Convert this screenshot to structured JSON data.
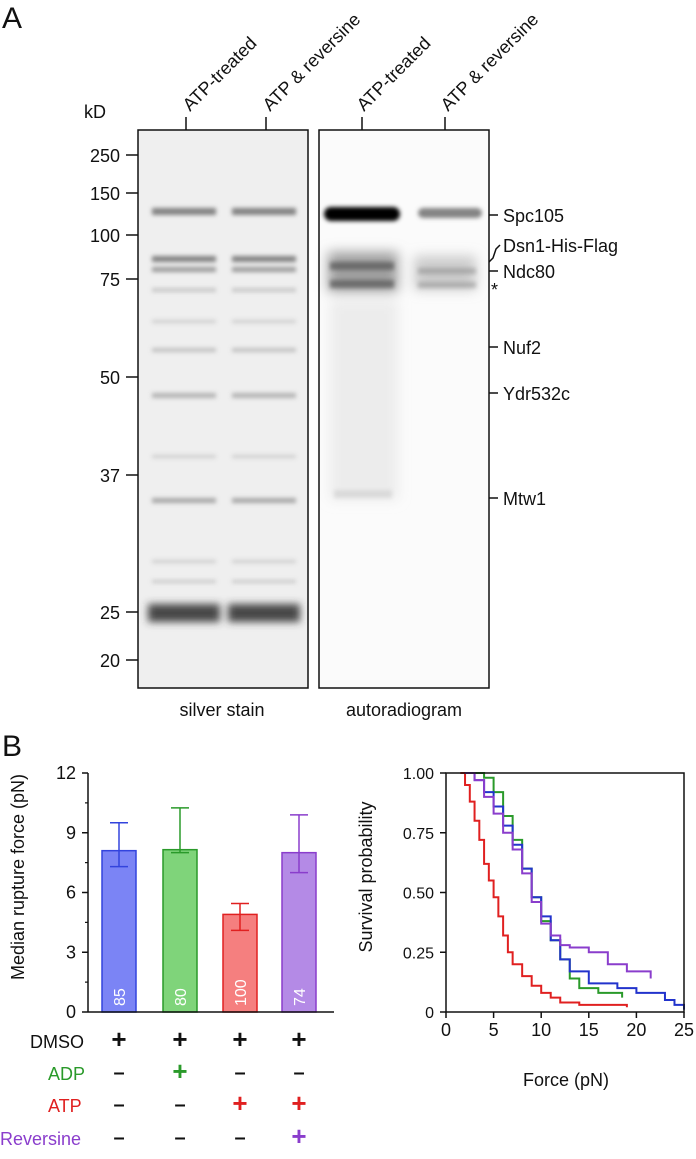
{
  "panel_a": {
    "letter": "A",
    "kd_label": "kD",
    "lane_labels": [
      "ATP-treated",
      "ATP & reversine",
      "ATP-treated",
      "ATP & reversine"
    ],
    "markers": [
      "250",
      "150",
      "100",
      "75",
      "50",
      "37",
      "25",
      "20"
    ],
    "left_gel_caption": "silver stain",
    "right_gel_caption": "autoradiogram",
    "band_labels": [
      "Spc105",
      "Dsn1-His-Flag",
      "Ndc80",
      "*",
      "Nuf2",
      "Ydr532c",
      "Mtw1"
    ]
  },
  "panel_b": {
    "letter": "B",
    "chart_data": [
      {
        "type": "bar",
        "ylabel": "Median rupture force (pN)",
        "ylim": [
          0,
          12
        ],
        "yticks": [
          "0",
          "3",
          "6",
          "9",
          "12"
        ],
        "series": [
          {
            "name": "DMSO+ADP−ATP−Rev−",
            "value": 8.1,
            "err_low": 7.3,
            "err_high": 9.5,
            "n": "85",
            "color": "#7b84f5",
            "stroke": "#3344dd"
          },
          {
            "name": "DMSO+ADP+ATP−Rev−",
            "value": 8.15,
            "err_low": 8.0,
            "err_high": 10.25,
            "n": "80",
            "color": "#7fd47a",
            "stroke": "#2a9a2a"
          },
          {
            "name": "DMSO+ADP−ATP+Rev−",
            "value": 4.9,
            "err_low": 4.1,
            "err_high": 5.45,
            "n": "100",
            "color": "#f57f7f",
            "stroke": "#e02020"
          },
          {
            "name": "DMSO+ADP−ATP+Rev+",
            "value": 8.0,
            "err_low": 7.0,
            "err_high": 9.9,
            "n": "74",
            "color": "#b48ae6",
            "stroke": "#8a3dcc"
          }
        ],
        "conditions": [
          {
            "label": "DMSO",
            "color": "#111111",
            "signs": [
              "+",
              "+",
              "+",
              "+"
            ]
          },
          {
            "label": "ADP",
            "color": "#2a9a2a",
            "signs": [
              "–",
              "+",
              "–",
              "–"
            ]
          },
          {
            "label": "ATP",
            "color": "#e02020",
            "signs": [
              "–",
              "–",
              "+",
              "+"
            ]
          },
          {
            "label": "Reversine",
            "color": "#8a3dcc",
            "signs": [
              "–",
              "–",
              "–",
              "+"
            ]
          }
        ]
      },
      {
        "type": "line",
        "xlabel": "Force (pN)",
        "ylabel": "Survival probability",
        "xlim": [
          0,
          25
        ],
        "ylim": [
          0,
          1
        ],
        "xticks": [
          "0",
          "5",
          "10",
          "15",
          "20",
          "25"
        ],
        "yticks": [
          "0",
          "0.25",
          "0.50",
          "0.75",
          "1.00"
        ],
        "series": [
          {
            "color": "#e02020",
            "points": [
              [
                1.5,
                1.0
              ],
              [
                2,
                0.95
              ],
              [
                2.5,
                0.88
              ],
              [
                3,
                0.8
              ],
              [
                3.5,
                0.72
              ],
              [
                4,
                0.62
              ],
              [
                4.5,
                0.55
              ],
              [
                5,
                0.48
              ],
              [
                5.5,
                0.4
              ],
              [
                6,
                0.32
              ],
              [
                6.5,
                0.25
              ],
              [
                7,
                0.2
              ],
              [
                8,
                0.15
              ],
              [
                9,
                0.11
              ],
              [
                10,
                0.08
              ],
              [
                11,
                0.06
              ],
              [
                12,
                0.04
              ],
              [
                14,
                0.03
              ],
              [
                19,
                0.02
              ]
            ]
          },
          {
            "color": "#2a9a2a",
            "points": [
              [
                2.5,
                1.0
              ],
              [
                4,
                0.98
              ],
              [
                5,
                0.92
              ],
              [
                6,
                0.82
              ],
              [
                7,
                0.72
              ],
              [
                8,
                0.6
              ],
              [
                9,
                0.48
              ],
              [
                10,
                0.38
              ],
              [
                11,
                0.3
              ],
              [
                12,
                0.22
              ],
              [
                13,
                0.14
              ],
              [
                14,
                0.1
              ],
              [
                16,
                0.08
              ],
              [
                18.5,
                0.06
              ]
            ]
          },
          {
            "color": "#2233cc",
            "points": [
              [
                2,
                1.0
              ],
              [
                3,
                0.97
              ],
              [
                4,
                0.92
              ],
              [
                5,
                0.86
              ],
              [
                6,
                0.78
              ],
              [
                7,
                0.7
              ],
              [
                8,
                0.6
              ],
              [
                9,
                0.48
              ],
              [
                10,
                0.4
              ],
              [
                11,
                0.3
              ],
              [
                12,
                0.22
              ],
              [
                13,
                0.17
              ],
              [
                15,
                0.12
              ],
              [
                18,
                0.1
              ],
              [
                20,
                0.08
              ],
              [
                23,
                0.05
              ],
              [
                24,
                0.03
              ],
              [
                25,
                0.01
              ]
            ]
          },
          {
            "color": "#8a3dcc",
            "points": [
              [
                2,
                1.0
              ],
              [
                3,
                0.97
              ],
              [
                4,
                0.9
              ],
              [
                5,
                0.83
              ],
              [
                6,
                0.75
              ],
              [
                7,
                0.68
              ],
              [
                8,
                0.58
              ],
              [
                9,
                0.46
              ],
              [
                10,
                0.37
              ],
              [
                11,
                0.32
              ],
              [
                12,
                0.28
              ],
              [
                13,
                0.27
              ],
              [
                15,
                0.25
              ],
              [
                17,
                0.2
              ],
              [
                19,
                0.17
              ],
              [
                21.5,
                0.16
              ],
              [
                21.5,
                0.14
              ]
            ]
          }
        ]
      }
    ]
  }
}
